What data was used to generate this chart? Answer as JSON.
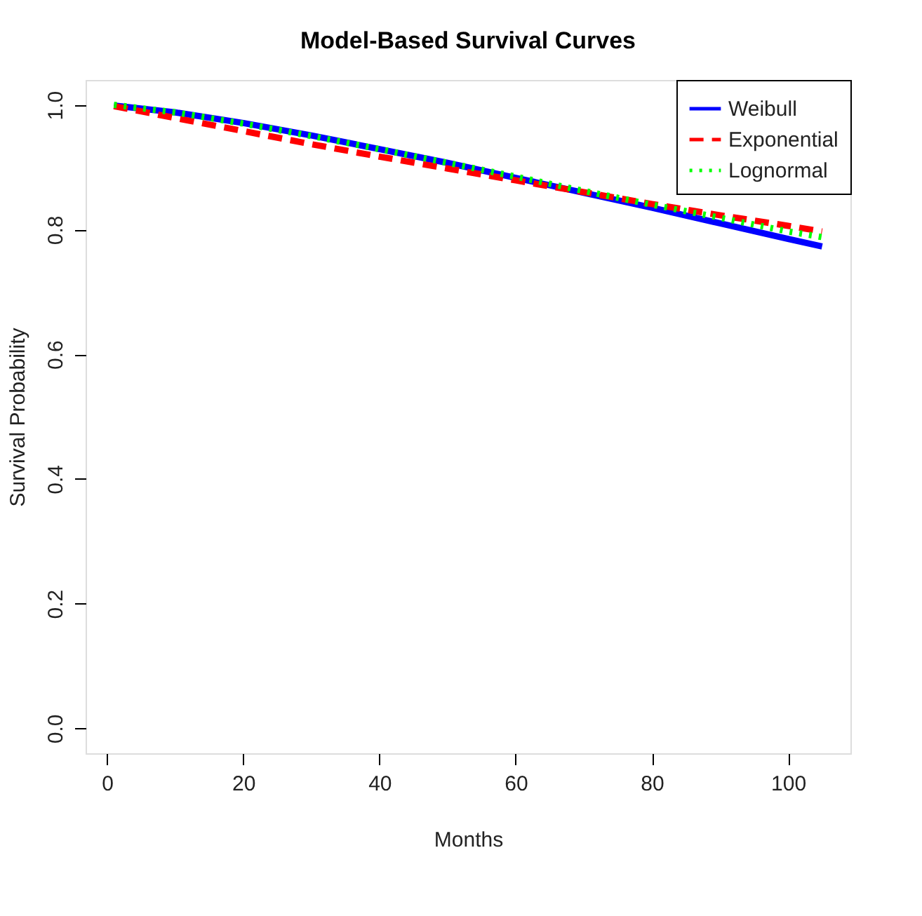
{
  "chart_data": {
    "type": "line",
    "title": "Model-Based Survival Curves",
    "xlabel": "Months",
    "ylabel": "Survival Probability",
    "x": [
      1,
      10,
      20,
      30,
      40,
      50,
      60,
      70,
      80,
      90,
      100,
      105
    ],
    "series": [
      {
        "name": "Weibull",
        "color": "#0000ff",
        "line_style": "solid",
        "values": [
          0.999,
          0.988,
          0.971,
          0.951,
          0.929,
          0.907,
          0.883,
          0.859,
          0.835,
          0.81,
          0.785,
          0.773
        ]
      },
      {
        "name": "Exponential",
        "color": "#ff0000",
        "line_style": "dashed",
        "values": [
          0.998,
          0.979,
          0.958,
          0.937,
          0.917,
          0.898,
          0.879,
          0.86,
          0.841,
          0.823,
          0.806,
          0.797
        ]
      },
      {
        "name": "Lognormal",
        "color": "#00ff00",
        "line_style": "dotted",
        "values": [
          1.0,
          0.988,
          0.97,
          0.95,
          0.929,
          0.907,
          0.885,
          0.862,
          0.84,
          0.819,
          0.797,
          0.788
        ]
      }
    ],
    "xlim": [
      -3.16,
      109.16
    ],
    "xticks": [
      0,
      20,
      40,
      60,
      80,
      100
    ],
    "ylim": [
      -0.04,
      1.04
    ],
    "yticks": [
      {
        "value": 0,
        "label": "0.0"
      },
      0.2,
      0.4,
      0.6,
      0.8,
      {
        "value": 1,
        "label": "1.0"
      }
    ],
    "grid": false,
    "legend": "top right",
    "marker": "none"
  }
}
